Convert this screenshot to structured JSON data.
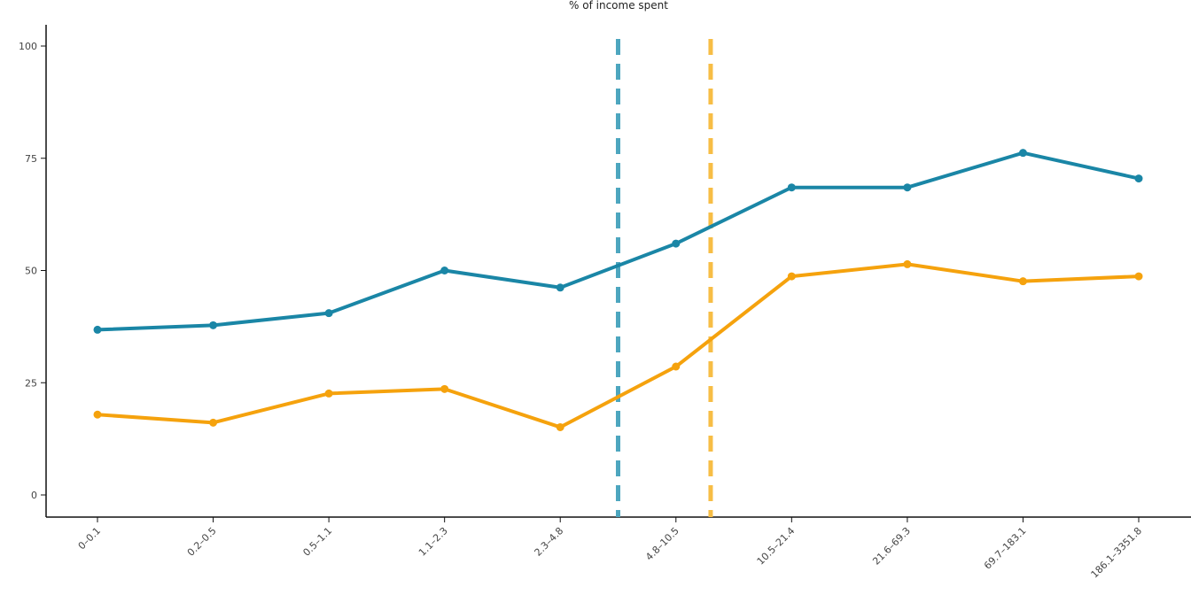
{
  "chart_data": {
    "type": "line",
    "title": "% of income spent",
    "xlabel": "",
    "ylabel": "",
    "categories": [
      "0–0.1",
      "0.2–0.5",
      "0.5–1.1",
      "1.1–2.3",
      "2.3–4.8",
      "4.8–10.5",
      "10.5–21.4",
      "21.6–69.3",
      "69.7–183.1",
      "186.1–3351.8"
    ],
    "ylim": [
      -5,
      105
    ],
    "yticks": [
      0,
      25,
      50,
      75,
      100
    ],
    "grid": false,
    "series": [
      {
        "color": "#1a86a6",
        "values": [
          36.8,
          37.8,
          40.5,
          50.0,
          46.2,
          56.0,
          68.5,
          68.5,
          76.2,
          70.5
        ]
      },
      {
        "color": "#f5a20d",
        "values": [
          17.9,
          16.1,
          22.6,
          23.6,
          15.1,
          28.6,
          48.7,
          51.4,
          47.6,
          48.7
        ]
      }
    ],
    "reference_lines": [
      {
        "x_position_between": [
          4,
          5
        ],
        "fraction": 0.5,
        "color": "#4da6bf"
      },
      {
        "x_position_between": [
          5,
          6
        ],
        "fraction": 0.3,
        "color": "#f7bd45"
      }
    ]
  }
}
